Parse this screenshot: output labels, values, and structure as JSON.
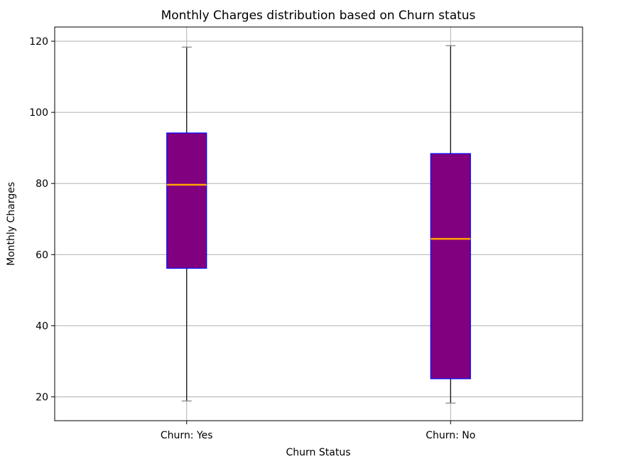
{
  "chart_data": {
    "type": "box",
    "title": "Monthly Charges distribution based on Churn status",
    "xlabel": "Churn Status",
    "ylabel": "Monthly Charges",
    "categories": [
      "Churn: Yes",
      "Churn: No"
    ],
    "yticks": [
      20,
      40,
      60,
      80,
      100,
      120
    ],
    "ylim": [
      13.3,
      124.0
    ],
    "grid": true,
    "boxes": [
      {
        "label": "Churn: Yes",
        "whislo": 18.85,
        "q1": 56.15,
        "median": 79.65,
        "q3": 94.2,
        "whishi": 118.35
      },
      {
        "label": "Churn: No",
        "whislo": 18.25,
        "q1": 25.1,
        "median": 64.43,
        "q3": 88.4,
        "whishi": 118.75
      }
    ],
    "colors": {
      "box_fill": "#800080",
      "box_edge": "#0000ff",
      "median": "#ffa500",
      "whisker": "#000000",
      "cap": "#808080",
      "grid": "#b0b0b0"
    }
  }
}
